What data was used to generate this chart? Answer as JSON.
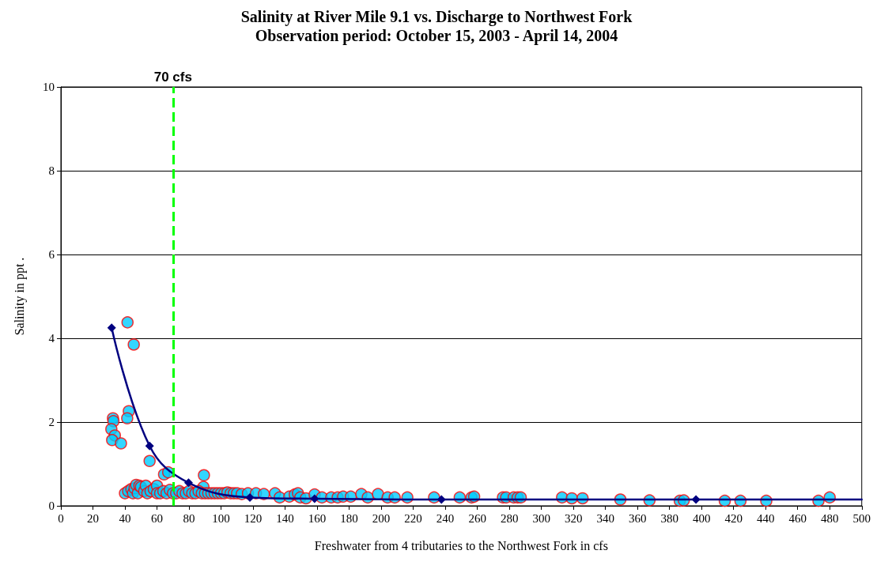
{
  "chart_data": {
    "type": "scatter",
    "title": "Salinity at River Mile 9.1 vs. Discharge to Northwest Fork",
    "subtitle": "Observation period: October 15, 2003 - April 14, 2004",
    "xlabel": "Freshwater from 4 tributaries to the Northwest Fork in cfs",
    "ylabel": "Salinity in ppt .",
    "xlim": [
      0,
      500
    ],
    "xticks": [
      0,
      20,
      40,
      60,
      80,
      100,
      120,
      140,
      160,
      180,
      200,
      220,
      240,
      260,
      280,
      300,
      320,
      340,
      360,
      380,
      400,
      420,
      440,
      460,
      480,
      500
    ],
    "ylim": [
      0,
      10
    ],
    "yticks": [
      0,
      2,
      4,
      6,
      8,
      10
    ],
    "grid": "y",
    "series": [
      {
        "marker": "circle",
        "color": "#00ccff",
        "x": [
          41.6,
          45.5,
          42.4,
          41.4,
          32.5,
          32.8,
          31.5,
          33.7,
          32,
          37.5,
          55.4,
          64.4,
          67,
          89.3,
          89,
          40,
          42,
          44,
          45,
          46,
          47,
          48,
          49,
          50,
          52,
          53,
          54,
          56,
          58,
          60,
          60,
          62,
          64,
          66,
          68,
          70,
          72,
          74,
          76,
          78,
          80,
          82,
          84,
          86,
          88,
          90,
          92,
          94,
          96,
          98,
          100,
          102,
          104,
          106,
          108,
          110,
          112.9,
          116.8,
          121.8,
          126.7,
          133.7,
          136.6,
          142.6,
          146,
          148,
          149.5,
          153,
          158.4,
          163,
          168.8,
          172.8,
          176.2,
          181,
          187.6,
          191.6,
          198,
          204,
          208.4,
          216.3,
          233,
          249,
          256.4,
          258,
          276,
          278,
          282.7,
          285.2,
          287.1,
          312.9,
          319,
          325.7,
          349.3,
          367.5,
          386.4,
          388.9,
          414.5,
          424.3,
          440.4,
          473,
          480
        ],
        "values": [
          4.38,
          3.85,
          2.26,
          2.09,
          2.09,
          2.02,
          1.83,
          1.68,
          1.57,
          1.49,
          1.07,
          0.75,
          0.8,
          0.73,
          0.45,
          0.3,
          0.35,
          0.4,
          0.3,
          0.42,
          0.5,
          0.3,
          0.48,
          0.45,
          0.35,
          0.48,
          0.3,
          0.35,
          0.4,
          0.48,
          0.3,
          0.3,
          0.35,
          0.3,
          0.38,
          0.3,
          0.3,
          0.35,
          0.3,
          0.3,
          0.35,
          0.3,
          0.3,
          0.35,
          0.3,
          0.3,
          0.3,
          0.3,
          0.3,
          0.3,
          0.3,
          0.3,
          0.32,
          0.3,
          0.3,
          0.3,
          0.28,
          0.3,
          0.3,
          0.28,
          0.3,
          0.2,
          0.22,
          0.27,
          0.3,
          0.2,
          0.18,
          0.27,
          0.2,
          0.2,
          0.2,
          0.22,
          0.22,
          0.28,
          0.2,
          0.28,
          0.2,
          0.2,
          0.2,
          0.2,
          0.2,
          0.2,
          0.22,
          0.2,
          0.2,
          0.2,
          0.2,
          0.2,
          0.2,
          0.18,
          0.18,
          0.15,
          0.13,
          0.12,
          0.13,
          0.12,
          0.12,
          0.12,
          0.12,
          0.2
        ]
      },
      {
        "type": "line",
        "marker": "diamond",
        "color": "#000080",
        "x": [
          31.7,
          55.4,
          79.7,
          118,
          158.4,
          237.6,
          396.5
        ],
        "values": [
          4.25,
          1.43,
          0.55,
          0.2,
          0.17,
          0.15,
          0.15
        ]
      },
      {
        "type": "line",
        "marker": "none",
        "color": "#000080",
        "x": [
          396.5,
          500
        ],
        "values": [
          0.15,
          0.15
        ]
      }
    ],
    "ref_lines": [
      {
        "axis": "x",
        "value": 70,
        "label": "70 cfs",
        "color": "#00ff00",
        "line_style": "dashed"
      }
    ]
  }
}
